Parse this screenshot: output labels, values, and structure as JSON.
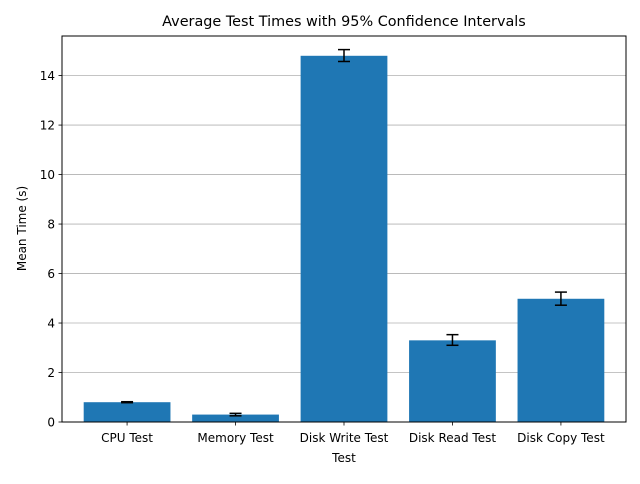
{
  "chart_data": {
    "type": "bar",
    "title": "Average Test Times with 95% Confidence Intervals",
    "xlabel": "Test",
    "ylabel": "Mean Time (s)",
    "categories": [
      "CPU Test",
      "Memory Test",
      "Disk Write Test",
      "Disk Read Test",
      "Disk Copy Test"
    ],
    "values": [
      0.8,
      0.3,
      14.8,
      3.3,
      4.98
    ],
    "ci_lower": [
      0.78,
      0.25,
      14.57,
      3.1,
      4.72
    ],
    "ci_upper": [
      0.82,
      0.35,
      15.05,
      3.53,
      5.25
    ],
    "ylim": [
      0,
      15.6
    ],
    "yticks": [
      0,
      2,
      4,
      6,
      8,
      10,
      12,
      14
    ],
    "grid": "y-major",
    "legend": "none",
    "colors": {
      "bar": "#1f77b4",
      "grid": "#b0b0b0",
      "errorbar": "#000000"
    }
  }
}
